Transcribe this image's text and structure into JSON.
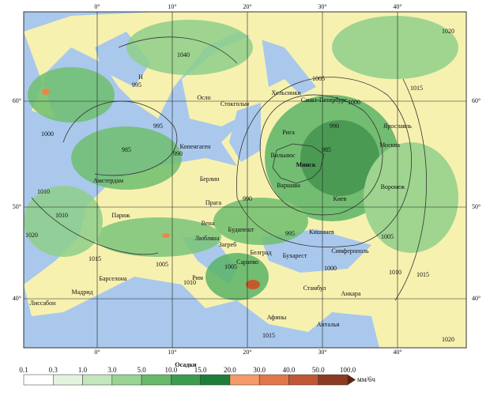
{
  "map": {
    "lon_labels": [
      "0°",
      "10°",
      "20°",
      "30°",
      "40°"
    ],
    "lat_labels": [
      "60°",
      "50°",
      "40°"
    ],
    "cities": [
      "Осло",
      "Стокгольм",
      "Хельсинки",
      "Санкт-Петербург",
      "Рига",
      "Копенгаген",
      "Вильнюс",
      "Минск",
      "Москва",
      "Ярославль",
      "Амстердам",
      "Берлин",
      "Варшава",
      "Воронеж",
      "Париж",
      "Прага",
      "Киев",
      "Вена",
      "Будапешт",
      "Кишинев",
      "Любляна",
      "Загреб",
      "Белград",
      "Бухарест",
      "Симферополь",
      "Сараево",
      "Барселона",
      "Мадрид",
      "Рим",
      "Стамбул",
      "Анкара",
      "Лиссабон",
      "Афины",
      "Анталья"
    ],
    "isobars": [
      "1040",
      "995",
      "985",
      "990",
      "995",
      "1000",
      "1005",
      "1010",
      "1015",
      "990",
      "985",
      "990",
      "1000",
      "995",
      "1005",
      "1010",
      "1015",
      "1020",
      "1005",
      "1010",
      "1015",
      "1010",
      "1020",
      "1000",
      "1005",
      "1015",
      "1020",
      "Н"
    ]
  },
  "legend": {
    "title": "Осадки",
    "ticks": [
      "0.1",
      "0.3",
      "1.0",
      "3.0",
      "5.0",
      "10.0",
      "15.0",
      "20.0",
      "30.0",
      "40.0",
      "50.0",
      "100.0"
    ],
    "unit": "мм/6ч"
  }
}
